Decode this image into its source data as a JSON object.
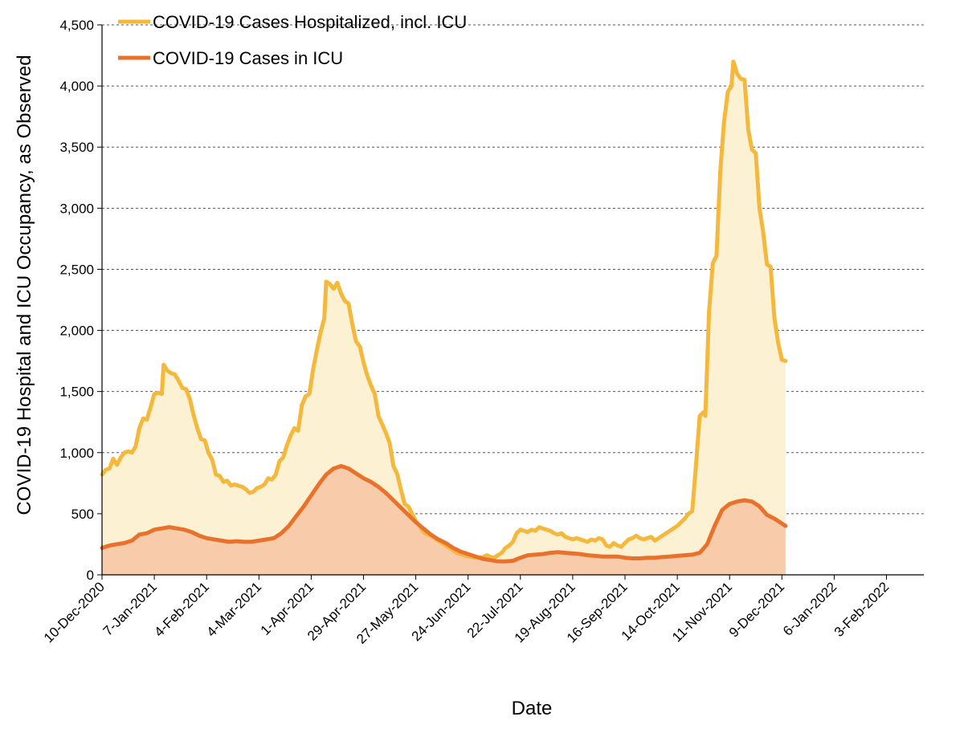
{
  "chart_data": {
    "type": "area",
    "title": "",
    "xlabel": "Date",
    "ylabel": "COVID-19 Hospital and ICU Occupancy, as Observed",
    "ylim": [
      0,
      4500
    ],
    "y_ticks": [
      0,
      500,
      1000,
      1500,
      2000,
      2500,
      3000,
      3500,
      4000,
      4500
    ],
    "y_tick_labels": [
      "0",
      "500",
      "1,000",
      "1,500",
      "2,000",
      "2,500",
      "3,000",
      "3,500",
      "4,000",
      "4,500"
    ],
    "x_tick_days": [
      0,
      28,
      56,
      84,
      112,
      140,
      168,
      196,
      224,
      252,
      280,
      308,
      336,
      364,
      392,
      420
    ],
    "x_tick_labels": [
      "10-Dec-2020",
      "7-Jan-2021",
      "4-Feb-2021",
      "4-Mar-2021",
      "1-Apr-2021",
      "29-Apr-2021",
      "27-May-2021",
      "24-Jun-2021",
      "22-Jul-2021",
      "19-Aug-2021",
      "16-Sep-2021",
      "14-Oct-2021",
      "11-Nov-2021",
      "9-Dec-2021",
      "6-Jan-2022",
      "3-Feb-2022"
    ],
    "x_note": "x values are days since 10-Dec-2020",
    "grid": true,
    "legend_position": "top-left",
    "series": [
      {
        "name": "COVID-19 Cases Hospitalized, incl. ICU",
        "line_color": "#f4b93c",
        "fill_color": "#fcf1d2",
        "points": [
          [
            0,
            820
          ],
          [
            2,
            860
          ],
          [
            4,
            870
          ],
          [
            6,
            950
          ],
          [
            8,
            900
          ],
          [
            10,
            960
          ],
          [
            12,
            1000
          ],
          [
            14,
            1010
          ],
          [
            16,
            1000
          ],
          [
            18,
            1050
          ],
          [
            20,
            1200
          ],
          [
            22,
            1280
          ],
          [
            24,
            1270
          ],
          [
            26,
            1370
          ],
          [
            28,
            1480
          ],
          [
            30,
            1490
          ],
          [
            32,
            1480
          ],
          [
            33,
            1720
          ],
          [
            35,
            1670
          ],
          [
            37,
            1650
          ],
          [
            39,
            1640
          ],
          [
            41,
            1590
          ],
          [
            43,
            1530
          ],
          [
            45,
            1520
          ],
          [
            47,
            1440
          ],
          [
            49,
            1310
          ],
          [
            51,
            1200
          ],
          [
            53,
            1110
          ],
          [
            55,
            1100
          ],
          [
            57,
            1000
          ],
          [
            59,
            940
          ],
          [
            61,
            820
          ],
          [
            63,
            810
          ],
          [
            65,
            760
          ],
          [
            67,
            770
          ],
          [
            69,
            730
          ],
          [
            71,
            740
          ],
          [
            73,
            730
          ],
          [
            75,
            720
          ],
          [
            77,
            700
          ],
          [
            79,
            670
          ],
          [
            81,
            680
          ],
          [
            83,
            710
          ],
          [
            85,
            720
          ],
          [
            87,
            740
          ],
          [
            89,
            790
          ],
          [
            91,
            780
          ],
          [
            93,
            820
          ],
          [
            95,
            930
          ],
          [
            97,
            960
          ],
          [
            99,
            1060
          ],
          [
            101,
            1140
          ],
          [
            103,
            1200
          ],
          [
            105,
            1180
          ],
          [
            107,
            1390
          ],
          [
            109,
            1460
          ],
          [
            111,
            1480
          ],
          [
            113,
            1680
          ],
          [
            115,
            1840
          ],
          [
            117,
            1980
          ],
          [
            119,
            2100
          ],
          [
            120,
            2400
          ],
          [
            122,
            2380
          ],
          [
            124,
            2340
          ],
          [
            126,
            2390
          ],
          [
            128,
            2300
          ],
          [
            130,
            2240
          ],
          [
            132,
            2220
          ],
          [
            134,
            2050
          ],
          [
            136,
            1910
          ],
          [
            138,
            1870
          ],
          [
            140,
            1740
          ],
          [
            142,
            1630
          ],
          [
            144,
            1550
          ],
          [
            146,
            1480
          ],
          [
            148,
            1300
          ],
          [
            150,
            1230
          ],
          [
            152,
            1160
          ],
          [
            154,
            1080
          ],
          [
            156,
            890
          ],
          [
            158,
            830
          ],
          [
            160,
            700
          ],
          [
            162,
            580
          ],
          [
            164,
            560
          ],
          [
            166,
            500
          ],
          [
            168,
            440
          ],
          [
            170,
            400
          ],
          [
            172,
            350
          ],
          [
            174,
            330
          ],
          [
            176,
            320
          ],
          [
            178,
            300
          ],
          [
            180,
            280
          ],
          [
            182,
            260
          ],
          [
            184,
            240
          ],
          [
            186,
            220
          ],
          [
            188,
            200
          ],
          [
            190,
            180
          ],
          [
            192,
            170
          ],
          [
            194,
            160
          ],
          [
            196,
            150
          ],
          [
            198,
            145
          ],
          [
            200,
            140
          ],
          [
            204,
            145
          ],
          [
            206,
            160
          ],
          [
            208,
            145
          ],
          [
            210,
            140
          ],
          [
            212,
            160
          ],
          [
            214,
            180
          ],
          [
            216,
            220
          ],
          [
            218,
            240
          ],
          [
            220,
            270
          ],
          [
            222,
            340
          ],
          [
            224,
            370
          ],
          [
            226,
            360
          ],
          [
            228,
            350
          ],
          [
            230,
            370
          ],
          [
            232,
            360
          ],
          [
            234,
            390
          ],
          [
            236,
            380
          ],
          [
            238,
            370
          ],
          [
            240,
            360
          ],
          [
            242,
            340
          ],
          [
            244,
            330
          ],
          [
            246,
            340
          ],
          [
            248,
            310
          ],
          [
            250,
            300
          ],
          [
            252,
            290
          ],
          [
            254,
            300
          ],
          [
            256,
            290
          ],
          [
            258,
            280
          ],
          [
            260,
            270
          ],
          [
            262,
            290
          ],
          [
            264,
            280
          ],
          [
            266,
            300
          ],
          [
            268,
            290
          ],
          [
            270,
            240
          ],
          [
            272,
            230
          ],
          [
            274,
            260
          ],
          [
            276,
            240
          ],
          [
            278,
            230
          ],
          [
            280,
            260
          ],
          [
            282,
            290
          ],
          [
            284,
            300
          ],
          [
            286,
            320
          ],
          [
            288,
            300
          ],
          [
            290,
            290
          ],
          [
            292,
            300
          ],
          [
            294,
            310
          ],
          [
            296,
            280
          ],
          [
            298,
            300
          ],
          [
            300,
            320
          ],
          [
            302,
            340
          ],
          [
            304,
            360
          ],
          [
            306,
            380
          ],
          [
            308,
            400
          ],
          [
            310,
            430
          ],
          [
            312,
            460
          ],
          [
            314,
            500
          ],
          [
            316,
            520
          ],
          [
            318,
            900
          ],
          [
            320,
            1300
          ],
          [
            322,
            1330
          ],
          [
            323,
            1300
          ],
          [
            325,
            2150
          ],
          [
            327,
            2550
          ],
          [
            329,
            2610
          ],
          [
            331,
            3300
          ],
          [
            333,
            3700
          ],
          [
            335,
            3950
          ],
          [
            337,
            4000
          ],
          [
            338,
            4200
          ],
          [
            340,
            4100
          ],
          [
            342,
            4060
          ],
          [
            344,
            4050
          ],
          [
            346,
            3640
          ],
          [
            348,
            3480
          ],
          [
            350,
            3450
          ],
          [
            352,
            3000
          ],
          [
            354,
            2800
          ],
          [
            356,
            2540
          ],
          [
            358,
            2520
          ],
          [
            360,
            2100
          ],
          [
            362,
            1900
          ],
          [
            364,
            1760
          ],
          [
            366,
            1750
          ]
        ]
      },
      {
        "name": "COVID-19 Cases in ICU",
        "line_color": "#e8722c",
        "fill_color": "#f8cbab",
        "points": [
          [
            0,
            220
          ],
          [
            4,
            240
          ],
          [
            8,
            250
          ],
          [
            12,
            260
          ],
          [
            16,
            280
          ],
          [
            20,
            330
          ],
          [
            24,
            340
          ],
          [
            28,
            370
          ],
          [
            32,
            380
          ],
          [
            36,
            390
          ],
          [
            40,
            380
          ],
          [
            44,
            370
          ],
          [
            48,
            350
          ],
          [
            52,
            320
          ],
          [
            56,
            300
          ],
          [
            60,
            290
          ],
          [
            64,
            280
          ],
          [
            68,
            270
          ],
          [
            72,
            275
          ],
          [
            76,
            270
          ],
          [
            80,
            270
          ],
          [
            84,
            280
          ],
          [
            88,
            290
          ],
          [
            92,
            300
          ],
          [
            96,
            340
          ],
          [
            100,
            400
          ],
          [
            104,
            480
          ],
          [
            108,
            560
          ],
          [
            112,
            650
          ],
          [
            116,
            740
          ],
          [
            120,
            820
          ],
          [
            124,
            870
          ],
          [
            128,
            890
          ],
          [
            132,
            870
          ],
          [
            136,
            830
          ],
          [
            140,
            790
          ],
          [
            144,
            760
          ],
          [
            148,
            720
          ],
          [
            152,
            670
          ],
          [
            156,
            610
          ],
          [
            160,
            550
          ],
          [
            164,
            490
          ],
          [
            168,
            430
          ],
          [
            172,
            380
          ],
          [
            176,
            330
          ],
          [
            180,
            290
          ],
          [
            184,
            260
          ],
          [
            188,
            220
          ],
          [
            192,
            190
          ],
          [
            196,
            170
          ],
          [
            200,
            150
          ],
          [
            204,
            130
          ],
          [
            208,
            120
          ],
          [
            212,
            110
          ],
          [
            216,
            110
          ],
          [
            220,
            115
          ],
          [
            224,
            140
          ],
          [
            228,
            160
          ],
          [
            232,
            165
          ],
          [
            236,
            170
          ],
          [
            240,
            180
          ],
          [
            244,
            185
          ],
          [
            248,
            180
          ],
          [
            252,
            175
          ],
          [
            256,
            170
          ],
          [
            260,
            160
          ],
          [
            264,
            155
          ],
          [
            268,
            150
          ],
          [
            272,
            150
          ],
          [
            276,
            150
          ],
          [
            280,
            140
          ],
          [
            284,
            135
          ],
          [
            288,
            135
          ],
          [
            292,
            140
          ],
          [
            296,
            140
          ],
          [
            300,
            145
          ],
          [
            304,
            150
          ],
          [
            308,
            155
          ],
          [
            312,
            160
          ],
          [
            316,
            165
          ],
          [
            320,
            180
          ],
          [
            324,
            250
          ],
          [
            328,
            400
          ],
          [
            332,
            530
          ],
          [
            336,
            580
          ],
          [
            340,
            600
          ],
          [
            344,
            610
          ],
          [
            348,
            600
          ],
          [
            352,
            560
          ],
          [
            356,
            490
          ],
          [
            360,
            460
          ],
          [
            364,
            420
          ],
          [
            366,
            400
          ]
        ]
      }
    ]
  }
}
